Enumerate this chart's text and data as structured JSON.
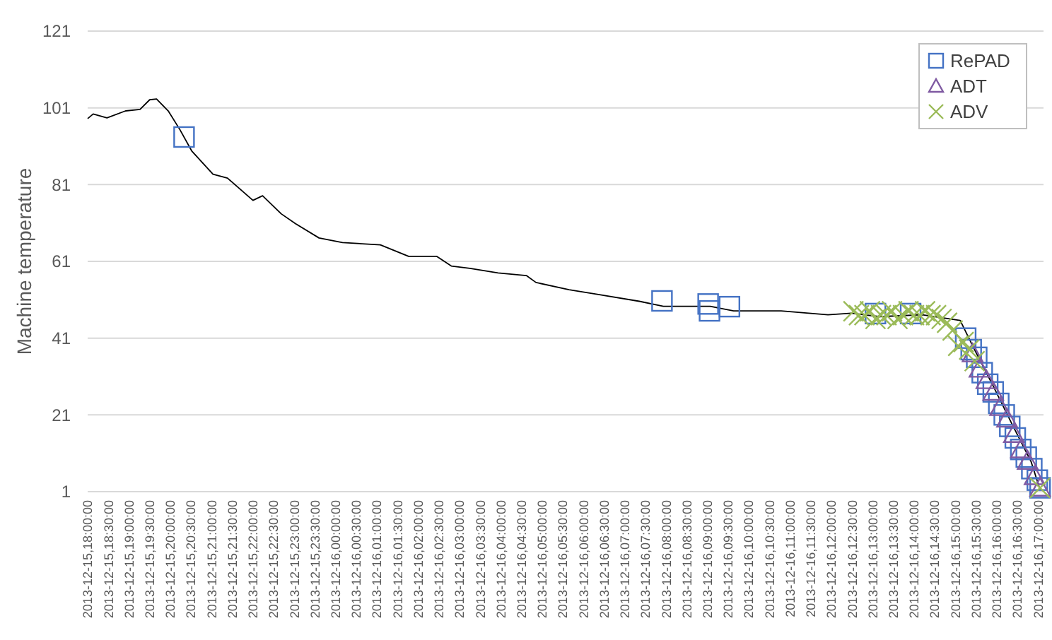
{
  "chart_data": {
    "type": "line",
    "ylabel": "Machine temperature",
    "ylim": [
      1,
      121
    ],
    "yticks": [
      1,
      21,
      41,
      61,
      81,
      101,
      121
    ],
    "xlim": [
      "2013-12-15T18:00",
      "2013-12-16T17:08"
    ],
    "xticks": [
      {
        "value": "2013-12-15T18:00",
        "label": "2013-12-15,18:00:00"
      },
      {
        "value": "2013-12-15T18:30",
        "label": "2013-12-15,18:30:00"
      },
      {
        "value": "2013-12-15T19:00",
        "label": "2013-12-15,19:00:00"
      },
      {
        "value": "2013-12-15T19:30",
        "label": "2013-12-15,19:30:00"
      },
      {
        "value": "2013-12-15T20:00",
        "label": "2013-12-15,20:00:00"
      },
      {
        "value": "2013-12-15T20:30",
        "label": "2013-12-15,20:30:00"
      },
      {
        "value": "2013-12-15T21:00",
        "label": "2013-12-15,21:00:00"
      },
      {
        "value": "2013-12-15T21:30",
        "label": "2013-12-15,21:30:00"
      },
      {
        "value": "2013-12-15T22:00",
        "label": "2013-12-15,22:00:00"
      },
      {
        "value": "2013-12-15T22:30",
        "label": "2013-12-15,22:30:00"
      },
      {
        "value": "2013-12-15T23:00",
        "label": "2013-12-15,23:00:00"
      },
      {
        "value": "2013-12-15T23:30",
        "label": "2013-12-15,23:30:00"
      },
      {
        "value": "2013-12-16T00:00",
        "label": "2013-12-16,00:00:00"
      },
      {
        "value": "2013-12-16T00:30",
        "label": "2013-12-16,00:30:00"
      },
      {
        "value": "2013-12-16T01:00",
        "label": "2013-12-16,01:00:00"
      },
      {
        "value": "2013-12-16T01:30",
        "label": "2013-12-16,01:30:00"
      },
      {
        "value": "2013-12-16T02:00",
        "label": "2013-12-16,02:00:00"
      },
      {
        "value": "2013-12-16T02:30",
        "label": "2013-12-16,02:30:00"
      },
      {
        "value": "2013-12-16T03:00",
        "label": "2013-12-16,03:00:00"
      },
      {
        "value": "2013-12-16T03:30",
        "label": "2013-12-16,03:30:00"
      },
      {
        "value": "2013-12-16T04:00",
        "label": "2013-12-16,04:00:00"
      },
      {
        "value": "2013-12-16T04:30",
        "label": "2013-12-16,04:30:00"
      },
      {
        "value": "2013-12-16T05:00",
        "label": "2013-12-16,05:00:00"
      },
      {
        "value": "2013-12-16T05:30",
        "label": "2013-12-16,05:30:00"
      },
      {
        "value": "2013-12-16T06:00",
        "label": "2013-12-16,06:00:00"
      },
      {
        "value": "2013-12-16T06:30",
        "label": "2013-12-16,06:30:00"
      },
      {
        "value": "2013-12-16T07:00",
        "label": "2013-12-16,07:00:00"
      },
      {
        "value": "2013-12-16T07:30",
        "label": "2013-12-16,07:30:00"
      },
      {
        "value": "2013-12-16T08:00",
        "label": "2013-12-16,08:00:00"
      },
      {
        "value": "2013-12-16T08:30",
        "label": "2013-12-16,08:30:00"
      },
      {
        "value": "2013-12-16T09:00",
        "label": "2013-12-16,09:00:00"
      },
      {
        "value": "2013-12-16T09:30",
        "label": "2013-12-16,09:30:00"
      },
      {
        "value": "2013-12-16T10:00",
        "label": "2013-12-16,10:00:00"
      },
      {
        "value": "2013-12-16T10:30",
        "label": "2013-12-16,10:30:00"
      },
      {
        "value": "2013-12-16T11:00",
        "label": "2013-12-16,11:00:00"
      },
      {
        "value": "2013-12-16T11:30",
        "label": "2013-12-16,11:30:00"
      },
      {
        "value": "2013-12-16T12:00",
        "label": "2013-12-16,12:00:00"
      },
      {
        "value": "2013-12-16T12:30",
        "label": "2013-12-16,12:30:00"
      },
      {
        "value": "2013-12-16T13:00",
        "label": "2013-12-16,13:00:00"
      },
      {
        "value": "2013-12-16T13:30",
        "label": "2013-12-16,13:30:00"
      },
      {
        "value": "2013-12-16T14:00",
        "label": "2013-12-16,14:00:00"
      },
      {
        "value": "2013-12-16T14:30",
        "label": "2013-12-16,14:30:00"
      },
      {
        "value": "2013-12-16T15:00",
        "label": "2013-12-16,15:00:00"
      },
      {
        "value": "2013-12-16T15:30",
        "label": "2013-12-16,15:30:00"
      },
      {
        "value": "2013-12-16T16:00",
        "label": "2013-12-16,16:00:00"
      },
      {
        "value": "2013-12-16T16:30",
        "label": "2013-12-16,16:30:00"
      },
      {
        "value": "2013-12-16T17:00",
        "label": "2013-12-16,17:00:00"
      }
    ],
    "grid": "y",
    "legend": "top right",
    "series": [
      {
        "color": "#000000",
        "marker": "none",
        "x": [
          "2013-12-15T18:00",
          "2013-12-15T18:08",
          "2013-12-15T18:28",
          "2013-12-15T18:55",
          "2013-12-15T19:16",
          "2013-12-15T19:30",
          "2013-12-15T19:40",
          "2013-12-15T19:57",
          "2013-12-15T20:14",
          "2013-12-15T20:31",
          "2013-12-15T21:02",
          "2013-12-15T21:23",
          "2013-12-15T22:00",
          "2013-12-15T22:14",
          "2013-12-15T22:41",
          "2013-12-15T23:02",
          "2013-12-15T23:36",
          "2013-12-16T00:10",
          "2013-12-16T01:05",
          "2013-12-16T01:46",
          "2013-12-16T02:27",
          "2013-12-16T02:48",
          "2013-12-16T03:15",
          "2013-12-16T03:56",
          "2013-12-16T04:37",
          "2013-12-16T04:51",
          "2013-12-16T05:39",
          "2013-12-16T06:20",
          "2013-12-16T07:21",
          "2013-12-16T07:56",
          "2013-12-16T09:04",
          "2013-12-16T09:38",
          "2013-12-16T10:47",
          "2013-12-16T11:55",
          "2013-12-16T12:29",
          "2013-12-16T13:10",
          "2013-12-16T14:12",
          "2013-12-16T15:07",
          "2013-12-16T15:27",
          "2013-12-16T15:55",
          "2013-12-16T16:22",
          "2013-12-16T16:50",
          "2013-12-16T17:03"
        ],
        "values": [
          98.2,
          99.4,
          98.4,
          100.2,
          100.6,
          103.1,
          103.3,
          100.2,
          95.3,
          89.8,
          83.7,
          82.7,
          76.9,
          78.1,
          73.4,
          70.8,
          67.1,
          65.9,
          65.3,
          62.3,
          62.3,
          59.8,
          59.2,
          58,
          57.3,
          55.5,
          53.6,
          52.4,
          50.6,
          49.3,
          49.3,
          48.1,
          48.1,
          47.1,
          47.5,
          46.6,
          47.1,
          45.6,
          38.3,
          28.5,
          18.7,
          8.8,
          1.5
        ]
      },
      {
        "name": "RePAD",
        "type": "scatter",
        "color": "#4472c4",
        "marker": "square",
        "x": [
          "2013-12-15T20:20",
          "2013-12-16T07:54",
          "2013-12-16T09:01",
          "2013-12-16T09:03",
          "2013-12-16T09:32",
          "2013-12-16T13:04",
          "2013-12-16T13:55",
          "2013-12-16T15:15",
          "2013-12-16T15:23",
          "2013-12-16T15:31",
          "2013-12-16T15:39",
          "2013-12-16T15:47",
          "2013-12-16T15:55",
          "2013-12-16T16:03",
          "2013-12-16T16:11",
          "2013-12-16T16:19",
          "2013-12-16T16:27",
          "2013-12-16T16:35",
          "2013-12-16T16:43",
          "2013-12-16T16:51",
          "2013-12-16T16:59",
          "2013-12-16T17:03"
        ],
        "values": [
          93.4,
          50.7,
          49.9,
          48.1,
          49.2,
          47.4,
          47.4,
          41,
          38,
          36,
          32,
          29,
          27,
          24,
          21,
          18,
          15,
          12,
          10,
          7,
          4,
          2
        ]
      },
      {
        "name": "ADT",
        "type": "scatter",
        "color": "#7f5aa2",
        "marker": "triangle",
        "x": [
          "2013-12-16T15:25",
          "2013-12-16T15:35",
          "2013-12-16T15:45",
          "2013-12-16T15:55",
          "2013-12-16T16:05",
          "2013-12-16T16:15",
          "2013-12-16T16:25",
          "2013-12-16T16:35",
          "2013-12-16T16:45",
          "2013-12-16T16:55",
          "2013-12-16T17:03"
        ],
        "values": [
          37,
          33,
          30,
          27,
          23,
          20,
          16,
          12,
          9,
          5,
          2
        ]
      },
      {
        "name": "ADV",
        "type": "scatter",
        "color": "#9bbb59",
        "marker": "cross",
        "x": [
          "2013-12-16T12:32",
          "2013-12-16T12:40",
          "2013-12-16T12:48",
          "2013-12-16T12:56",
          "2013-12-16T13:04",
          "2013-12-16T13:12",
          "2013-12-16T13:20",
          "2013-12-16T13:28",
          "2013-12-16T13:36",
          "2013-12-16T13:44",
          "2013-12-16T13:52",
          "2013-12-16T14:00",
          "2013-12-16T14:08",
          "2013-12-16T14:16",
          "2013-12-16T14:24",
          "2013-12-16T14:32",
          "2013-12-16T14:40",
          "2013-12-16T14:48",
          "2013-12-16T14:56",
          "2013-12-16T15:04",
          "2013-12-16T15:12",
          "2013-12-16T15:20",
          "2013-12-16T15:28",
          "2013-12-16T17:03"
        ],
        "values": [
          48,
          47,
          47,
          48,
          46,
          47,
          47,
          48,
          46,
          47,
          48,
          47,
          47,
          48,
          47,
          47,
          46,
          45,
          43,
          39,
          40,
          38,
          35,
          2
        ]
      }
    ]
  }
}
